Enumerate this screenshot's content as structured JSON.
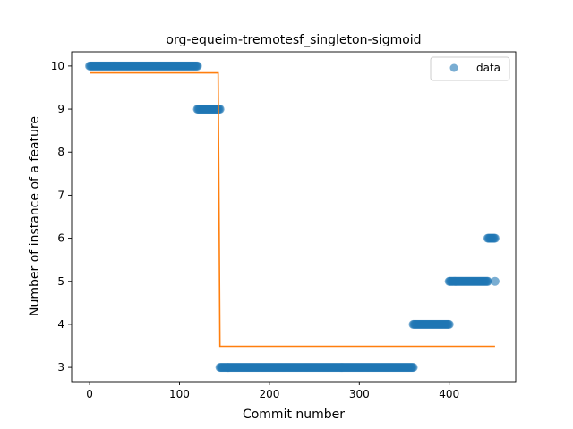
{
  "chart_data": {
    "type": "scatter",
    "title": "org-equeim-tremotesf_singleton-sigmoid",
    "xlabel": "Commit number",
    "ylabel": "Number of instance of a feature",
    "xlim": [
      -20,
      474
    ],
    "ylim": [
      2.67,
      10.33
    ],
    "xticks": [
      0,
      100,
      200,
      300,
      400
    ],
    "yticks": [
      3,
      4,
      5,
      6,
      7,
      8,
      9,
      10
    ],
    "grid": false,
    "legend_position": "top-right",
    "legend": [
      "data"
    ],
    "colors": {
      "data": "#1f77b4",
      "fit": "#ff7f0e"
    },
    "series": [
      {
        "name": "data",
        "kind": "scatter",
        "segments": [
          {
            "x_start": 0,
            "x_end": 120,
            "y": 10
          },
          {
            "x_start": 120,
            "x_end": 145,
            "y": 9
          },
          {
            "x_start": 145,
            "x_end": 360,
            "y": 3
          },
          {
            "x_start": 360,
            "x_end": 400,
            "y": 4
          },
          {
            "x_start": 400,
            "x_end": 443,
            "y": 5
          },
          {
            "x_start": 443,
            "x_end": 451,
            "y": 6
          },
          {
            "x_start": 451,
            "x_end": 451,
            "y": 5
          }
        ]
      },
      {
        "kind": "line",
        "points": [
          [
            0,
            9.84
          ],
          [
            143,
            9.84
          ],
          [
            144,
            6.7
          ],
          [
            145,
            3.49
          ],
          [
            451,
            3.49
          ]
        ]
      }
    ]
  }
}
